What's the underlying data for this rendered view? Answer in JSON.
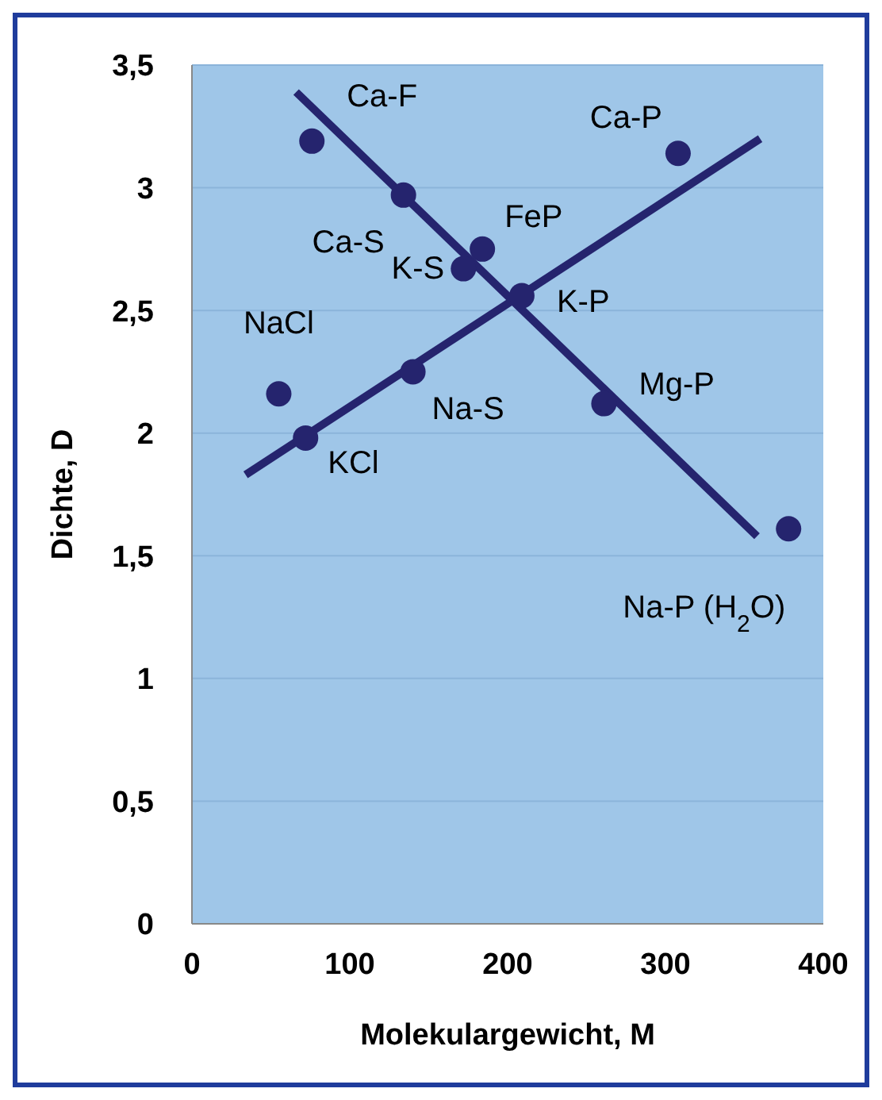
{
  "chart_data": {
    "type": "scatter",
    "xlabel": "Molekulargewicht, M",
    "ylabel": "Dichte, D",
    "xlim": [
      0,
      400
    ],
    "xticks": [
      0,
      100,
      200,
      300,
      400
    ],
    "ylim": [
      0,
      3.5
    ],
    "yticks": [
      0,
      {
        "value": 0.5,
        "label": "0,5"
      },
      1,
      {
        "value": 1.5,
        "label": "1,5"
      },
      2,
      {
        "value": 2.5,
        "label": "2,5"
      },
      3,
      {
        "value": 3.5,
        "label": "3,5"
      }
    ],
    "grid": "y",
    "series": [
      {
        "marker": "circle",
        "color": "#25246e",
        "x": [
          76,
          134,
          184,
          172,
          209,
          55,
          140,
          72,
          261,
          308,
          378
        ],
        "values": [
          3.19,
          2.97,
          2.75,
          2.67,
          2.56,
          2.16,
          2.25,
          1.98,
          2.12,
          3.14,
          1.61
        ]
      },
      {
        "type": "line",
        "marker": "none",
        "color": "#25246e",
        "x": [
          66,
          358
        ],
        "values": [
          3.39,
          1.58
        ]
      },
      {
        "type": "line",
        "marker": "none",
        "color": "#25246e",
        "x": [
          34,
          360
        ],
        "values": [
          1.83,
          3.2
        ]
      }
    ],
    "annotations": [
      {
        "text": "Ca-F",
        "x": 76,
        "y": 3.19
      },
      {
        "text": "Ca-S",
        "x": 134,
        "y": 2.97
      },
      {
        "text": "FeP",
        "x": 184,
        "y": 2.75
      },
      {
        "text": "K-S",
        "x": 172,
        "y": 2.67
      },
      {
        "text": "K-P",
        "x": 209,
        "y": 2.56
      },
      {
        "text": "NaCl",
        "x": 55,
        "y": 2.16
      },
      {
        "text": "Na-S",
        "x": 140,
        "y": 2.25
      },
      {
        "text": "KCl",
        "x": 72,
        "y": 1.98
      },
      {
        "text": "Mg-P",
        "x": 261,
        "y": 2.12
      },
      {
        "text": "Ca-P",
        "x": 308,
        "y": 3.14
      },
      {
        "text": "Na-P (H$_{2}$O)",
        "x": 378,
        "y": 1.61
      }
    ]
  }
}
